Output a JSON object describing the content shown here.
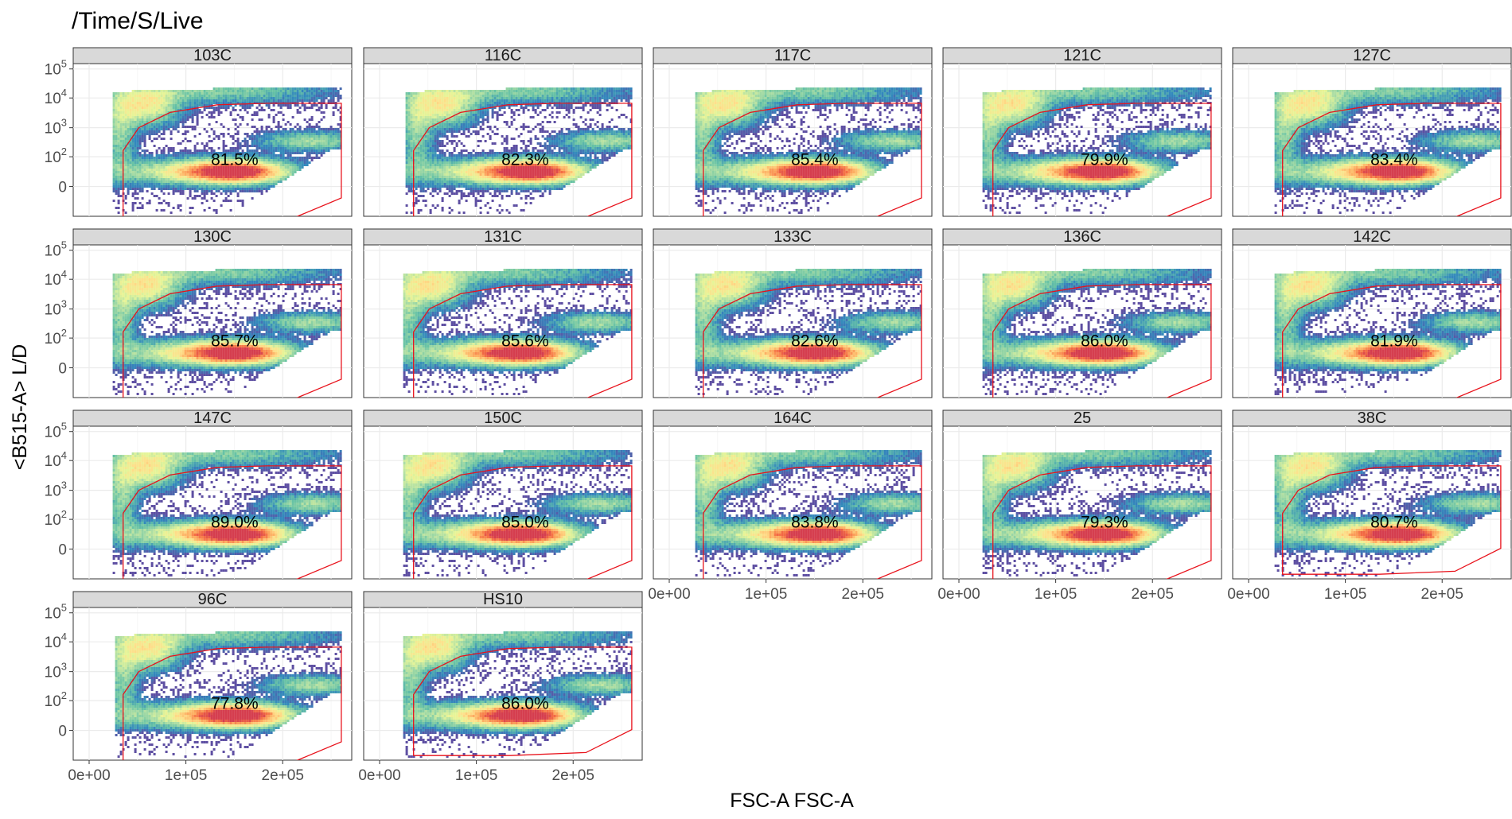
{
  "chart_data": {
    "type": "scatter",
    "subtype": "flow-cytometry-density-hexbin-faceted",
    "title": "/Time/S/Live",
    "xlabel": "FSC-A FSC-A",
    "ylabel": "<B515-A> L/D",
    "xlim": [
      0,
      270000
    ],
    "x_ticks": [
      0,
      100000,
      200000
    ],
    "x_tick_labels": [
      "0e+00",
      "1e+05",
      "2e+05"
    ],
    "y_scale": "biexponential",
    "y_ticks": [
      0,
      100,
      1000,
      10000,
      100000
    ],
    "y_tick_labels": [
      {
        "base": "0",
        "exp": ""
      },
      {
        "base": "10",
        "exp": "2"
      },
      {
        "base": "10",
        "exp": "3"
      },
      {
        "base": "10",
        "exp": "4"
      },
      {
        "base": "10",
        "exp": "5"
      }
    ],
    "colormap": [
      "#5e4fa2",
      "#3288bd",
      "#66c2a5",
      "#abdda4",
      "#e6f598",
      "#fee08b",
      "#fdae61",
      "#f46d43",
      "#d53e4f"
    ],
    "gate_color": "#e8121b",
    "grid": true,
    "facets": [
      {
        "name": "103C",
        "percent": "81.5%",
        "gate": "open"
      },
      {
        "name": "116C",
        "percent": "82.3%",
        "gate": "open"
      },
      {
        "name": "117C",
        "percent": "85.4%",
        "gate": "open"
      },
      {
        "name": "121C",
        "percent": "79.9%",
        "gate": "open"
      },
      {
        "name": "127C",
        "percent": "83.4%",
        "gate": "open"
      },
      {
        "name": "130C",
        "percent": "85.7%",
        "gate": "open"
      },
      {
        "name": "131C",
        "percent": "85.6%",
        "gate": "open"
      },
      {
        "name": "133C",
        "percent": "82.6%",
        "gate": "open"
      },
      {
        "name": "136C",
        "percent": "86.0%",
        "gate": "open"
      },
      {
        "name": "142C",
        "percent": "81.9%",
        "gate": "open"
      },
      {
        "name": "147C",
        "percent": "89.0%",
        "gate": "open"
      },
      {
        "name": "150C",
        "percent": "85.0%",
        "gate": "open"
      },
      {
        "name": "164C",
        "percent": "83.8%",
        "gate": "open"
      },
      {
        "name": "25",
        "percent": "79.3%",
        "gate": "open"
      },
      {
        "name": "38C",
        "percent": "80.7%",
        "gate": "closed"
      },
      {
        "name": "96C",
        "percent": "77.8%",
        "gate": "open"
      },
      {
        "name": "HS10",
        "percent": "86.0%",
        "gate": "closed"
      }
    ]
  }
}
